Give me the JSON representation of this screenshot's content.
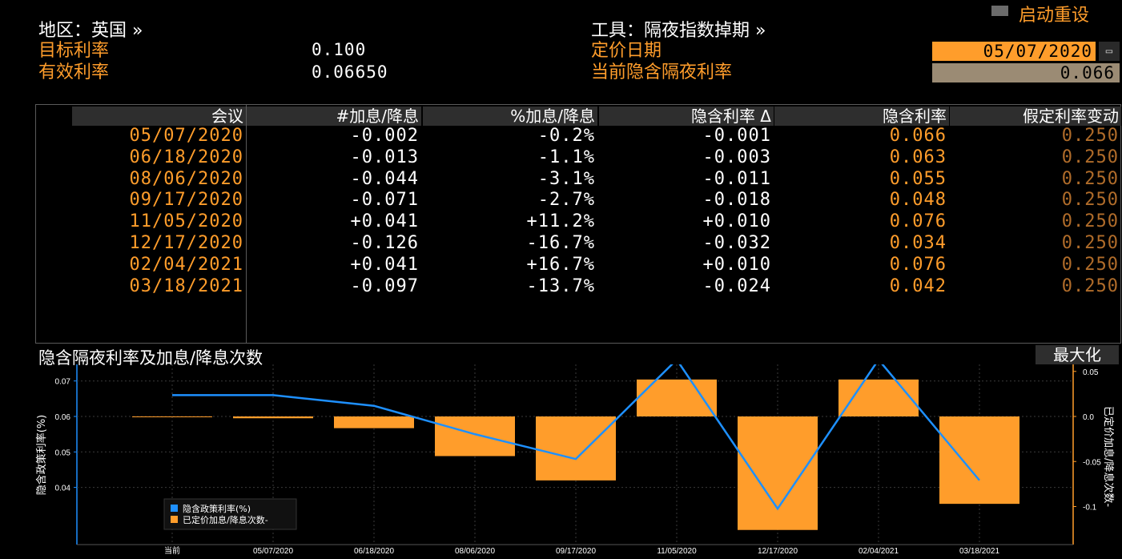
{
  "topbar": {
    "reset_label": "启动重设"
  },
  "info": {
    "region_label": "地区：英国 »",
    "target_rate_label": "目标利率",
    "target_rate_value": "0.100",
    "effective_rate_label": "有效利率",
    "effective_rate_value": "0.06650",
    "instrument_label": "工具：隔夜指数掉期 »",
    "pricing_date_label": "定价日期",
    "pricing_date_value": "05/07/2020",
    "current_implied_label": "当前隐含隔夜利率",
    "current_implied_value": "0.066"
  },
  "table": {
    "headers": [
      "会议",
      "#加息/降息",
      "%加息/降息",
      "隐含利率 Δ",
      "隐含利率",
      "假定利率变动"
    ],
    "rows": [
      [
        "05/07/2020",
        "-0.002",
        "-0.2%",
        "-0.001",
        "0.066",
        "0.250"
      ],
      [
        "06/18/2020",
        "-0.013",
        "-1.1%",
        "-0.003",
        "0.063",
        "0.250"
      ],
      [
        "08/06/2020",
        "-0.044",
        "-3.1%",
        "-0.011",
        "0.055",
        "0.250"
      ],
      [
        "09/17/2020",
        "-0.071",
        "-2.7%",
        "-0.018",
        "0.048",
        "0.250"
      ],
      [
        "11/05/2020",
        "+0.041",
        "+11.2%",
        "+0.010",
        "0.076",
        "0.250"
      ],
      [
        "12/17/2020",
        "-0.126",
        "-16.7%",
        "-0.032",
        "0.034",
        "0.250"
      ],
      [
        "02/04/2021",
        "+0.041",
        "+16.7%",
        "+0.010",
        "0.076",
        "0.250"
      ],
      [
        "03/18/2021",
        "-0.097",
        "-13.7%",
        "-0.024",
        "0.042",
        "0.250"
      ]
    ]
  },
  "chart": {
    "title": "隐含隔夜利率及加息/降息次数",
    "maximize_label": "最大化"
  },
  "colors": {
    "orange": "#ff9d2b",
    "blue": "#1e90ff",
    "tan": "#b06c2a",
    "bg": "#000000"
  },
  "chart_data": {
    "type": "bar",
    "categories": [
      "当前",
      "05/07/2020",
      "06/18/2020",
      "08/06/2020",
      "09/17/2020",
      "11/05/2020",
      "12/17/2020",
      "02/04/2021",
      "03/18/2021"
    ],
    "series": [
      {
        "name": "隐含政策利率(%)",
        "type": "line",
        "axis": "left",
        "values": [
          0.066,
          0.066,
          0.063,
          0.055,
          0.048,
          0.076,
          0.034,
          0.076,
          0.042
        ]
      },
      {
        "name": "已定价加息/降息次数-",
        "type": "bar",
        "axis": "right",
        "values": [
          0.0,
          -0.002,
          -0.013,
          -0.044,
          -0.071,
          0.041,
          -0.126,
          0.041,
          -0.097
        ]
      }
    ],
    "ylabel": "隐含政策利率(%)",
    "y2label": "已定价加息/降息次数-",
    "ylim": [
      0.032,
      0.082
    ],
    "y2lim": [
      -0.13,
      0.07
    ],
    "yticks": [
      "0.04",
      "0.05",
      "0.06",
      "0.07"
    ],
    "y2ticks": [
      "0.05",
      "0.0",
      "-0.05",
      "-0.1"
    ],
    "legend_position": "bottom-left",
    "grid": true
  }
}
